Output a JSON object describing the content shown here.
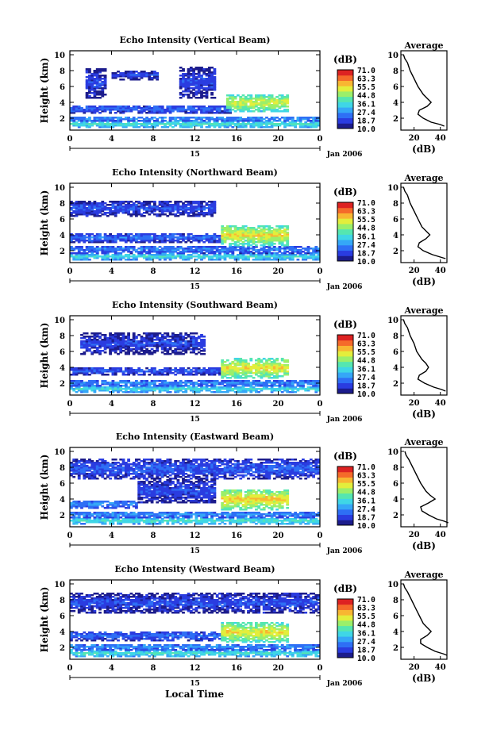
{
  "date_label": "Jan 2006",
  "day_label": "15",
  "xlabel_bottom": "Local Time",
  "x_ticks": [
    "0",
    "4",
    "8",
    "12",
    "16",
    "20",
    "0"
  ],
  "y_ticks": [
    "10",
    "8",
    "6",
    "4",
    "2"
  ],
  "ylabel": "Height (km)",
  "colorbar": {
    "unit": "(dB)",
    "ticks": [
      "71.0",
      "63.3",
      "55.5",
      "44.8",
      "36.1",
      "27.4",
      "18.7",
      "10.0"
    ],
    "colors": [
      "#1c1c8c",
      "#2a3ce0",
      "#2e6ff5",
      "#35a7f7",
      "#3fd6e6",
      "#55e6b0",
      "#9bef6a",
      "#e3ee3c",
      "#f8b632",
      "#f56a2a",
      "#dd2222"
    ]
  },
  "average_panel": {
    "title": "Average",
    "xlabel": "(dB)"
  },
  "chart_data": [
    {
      "type": "heatmap",
      "title": "Echo Intensity (Vertical Beam)",
      "xlabel": "",
      "ylabel": "Height (km)",
      "xlim": [
        0,
        24
      ],
      "ylim": [
        0.5,
        10.5
      ],
      "colorbar_range": [
        10.0,
        71.0
      ],
      "layers": [
        {
          "x_start": 0,
          "x_end": 24,
          "h_bottom": 0.8,
          "h_top": 1.6,
          "db": 32
        },
        {
          "x_start": 0,
          "x_end": 24,
          "h_bottom": 1.6,
          "h_top": 2.2,
          "db": 22
        },
        {
          "x_start": 0,
          "x_end": 15.5,
          "h_bottom": 2.6,
          "h_top": 3.6,
          "db": 18
        },
        {
          "x_start": 15,
          "x_end": 21,
          "h_bottom": 2.8,
          "h_top": 5.0,
          "db": 40
        },
        {
          "x_start": 1.5,
          "x_end": 3.5,
          "h_bottom": 4.5,
          "h_top": 8.2,
          "db": 14
        },
        {
          "x_start": 4,
          "x_end": 8.5,
          "h_bottom": 6.8,
          "h_top": 8.0,
          "db": 14
        },
        {
          "x_start": 10.5,
          "x_end": 14,
          "h_bottom": 4.5,
          "h_top": 8.5,
          "db": 14
        }
      ],
      "average": {
        "xlim": [
          10,
          45
        ],
        "x_ticks": [
          "20",
          "40"
        ],
        "heights": [
          10,
          9.5,
          9,
          8,
          7,
          6,
          5,
          4.5,
          4,
          3.5,
          3,
          2.5,
          2,
          1.5,
          1.2,
          1.0
        ],
        "db": [
          12,
          13,
          15,
          17,
          20,
          23,
          27,
          30,
          33,
          30,
          24,
          23,
          27,
          33,
          40,
          43
        ]
      }
    },
    {
      "type": "heatmap",
      "title": "Echo Intensity (Northward Beam)",
      "xlabel": "",
      "ylabel": "Height (km)",
      "xlim": [
        0,
        24
      ],
      "ylim": [
        0.5,
        10.5
      ],
      "colorbar_range": [
        10.0,
        71.0
      ],
      "layers": [
        {
          "x_start": 0,
          "x_end": 24,
          "h_bottom": 0.8,
          "h_top": 1.6,
          "db": 30
        },
        {
          "x_start": 0,
          "x_end": 24,
          "h_bottom": 1.6,
          "h_top": 2.6,
          "db": 20
        },
        {
          "x_start": 0,
          "x_end": 15,
          "h_bottom": 3.0,
          "h_top": 4.2,
          "db": 18
        },
        {
          "x_start": 14.5,
          "x_end": 21,
          "h_bottom": 2.6,
          "h_top": 5.2,
          "db": 42
        },
        {
          "x_start": 0,
          "x_end": 14,
          "h_bottom": 6.3,
          "h_top": 8.3,
          "db": 15
        }
      ],
      "average": {
        "xlim": [
          10,
          45
        ],
        "x_ticks": [
          "20",
          "40"
        ],
        "heights": [
          10,
          9.5,
          9,
          8,
          7,
          6,
          5,
          4.5,
          4,
          3.5,
          3,
          2.5,
          2,
          1.5,
          1.2,
          1.0
        ],
        "db": [
          12,
          13,
          15,
          17,
          20,
          23,
          26,
          29,
          32,
          29,
          24,
          23,
          27,
          34,
          40,
          44
        ]
      }
    },
    {
      "type": "heatmap",
      "title": "Echo Intensity (Southward Beam)",
      "xlabel": "",
      "ylabel": "Height (km)",
      "xlim": [
        0,
        24
      ],
      "ylim": [
        0.5,
        10.5
      ],
      "colorbar_range": [
        10.0,
        71.0
      ],
      "layers": [
        {
          "x_start": 0,
          "x_end": 24,
          "h_bottom": 0.8,
          "h_top": 1.6,
          "db": 30
        },
        {
          "x_start": 0,
          "x_end": 24,
          "h_bottom": 1.6,
          "h_top": 2.3,
          "db": 22
        },
        {
          "x_start": 0,
          "x_end": 15,
          "h_bottom": 3.0,
          "h_top": 4.0,
          "db": 17
        },
        {
          "x_start": 14.5,
          "x_end": 21,
          "h_bottom": 2.6,
          "h_top": 5.1,
          "db": 42
        },
        {
          "x_start": 1,
          "x_end": 13,
          "h_bottom": 5.6,
          "h_top": 8.3,
          "db": 14
        }
      ],
      "average": {
        "xlim": [
          10,
          45
        ],
        "x_ticks": [
          "20",
          "40"
        ],
        "heights": [
          10,
          9.5,
          9,
          8,
          7,
          6,
          5,
          4.5,
          4,
          3.5,
          3,
          2.5,
          2,
          1.5,
          1.2,
          1.0
        ],
        "db": [
          12,
          13,
          15,
          17,
          20,
          22,
          26,
          29,
          31,
          29,
          24,
          23,
          28,
          35,
          41,
          44
        ]
      }
    },
    {
      "type": "heatmap",
      "title": "Echo Intensity (Eastward Beam)",
      "xlabel": "",
      "ylabel": "Height (km)",
      "xlim": [
        0,
        24
      ],
      "ylim": [
        0.5,
        10.5
      ],
      "colorbar_range": [
        10.0,
        71.0
      ],
      "layers": [
        {
          "x_start": 0,
          "x_end": 24,
          "h_bottom": 0.8,
          "h_top": 1.6,
          "db": 32
        },
        {
          "x_start": 0,
          "x_end": 24,
          "h_bottom": 1.6,
          "h_top": 2.4,
          "db": 22
        },
        {
          "x_start": 0,
          "x_end": 6.5,
          "h_bottom": 2.8,
          "h_top": 3.8,
          "db": 22
        },
        {
          "x_start": 14.5,
          "x_end": 21,
          "h_bottom": 2.6,
          "h_top": 5.2,
          "db": 44
        },
        {
          "x_start": 0,
          "x_end": 24,
          "h_bottom": 6.5,
          "h_top": 9.0,
          "db": 17
        },
        {
          "x_start": 6.5,
          "x_end": 14,
          "h_bottom": 3.5,
          "h_top": 6.5,
          "db": 15
        }
      ],
      "average": {
        "xlim": [
          10,
          45
        ],
        "x_ticks": [
          "20",
          "40"
        ],
        "heights": [
          10,
          9.5,
          9,
          8,
          7,
          6,
          5,
          4.5,
          4,
          3.5,
          3,
          2.5,
          2,
          1.5,
          1.2,
          1.0
        ],
        "db": [
          13,
          14,
          16,
          19,
          22,
          25,
          29,
          32,
          36,
          31,
          25,
          26,
          31,
          37,
          43,
          46
        ]
      }
    },
    {
      "type": "heatmap",
      "title": "Echo Intensity (Westward Beam)",
      "xlabel": "Local Time",
      "ylabel": "Height (km)",
      "xlim": [
        0,
        24
      ],
      "ylim": [
        0.5,
        10.5
      ],
      "colorbar_range": [
        10.0,
        71.0
      ],
      "layers": [
        {
          "x_start": 0,
          "x_end": 24,
          "h_bottom": 0.8,
          "h_top": 1.6,
          "db": 32
        },
        {
          "x_start": 0,
          "x_end": 24,
          "h_bottom": 1.6,
          "h_top": 2.4,
          "db": 22
        },
        {
          "x_start": 0,
          "x_end": 15,
          "h_bottom": 2.8,
          "h_top": 4.0,
          "db": 18
        },
        {
          "x_start": 14.5,
          "x_end": 21,
          "h_bottom": 2.6,
          "h_top": 5.1,
          "db": 42
        },
        {
          "x_start": 0,
          "x_end": 24,
          "h_bottom": 6.3,
          "h_top": 8.8,
          "db": 15
        }
      ],
      "average": {
        "xlim": [
          10,
          45
        ],
        "x_ticks": [
          "20",
          "40"
        ],
        "heights": [
          10,
          9.5,
          9,
          8,
          7,
          6,
          5,
          4.5,
          4,
          3.5,
          3,
          2.5,
          2,
          1.5,
          1.2,
          1.0
        ],
        "db": [
          12,
          13,
          15,
          18,
          21,
          24,
          27,
          30,
          33,
          30,
          25,
          25,
          30,
          36,
          42,
          45
        ]
      }
    }
  ]
}
